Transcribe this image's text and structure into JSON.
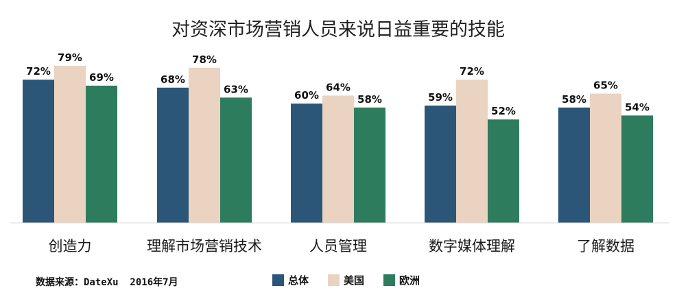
{
  "chart_data": {
    "type": "bar",
    "title": "对资深市场营销人员来说日益重要的技能",
    "categories": [
      "创造力",
      "理解市场营销技术",
      "人员管理",
      "数字媒体理解",
      "了解数据"
    ],
    "series": [
      {
        "name": "总体",
        "color": "#2b5677",
        "values": [
          72,
          68,
          60,
          59,
          58
        ],
        "labels": [
          "72%",
          "68%",
          "60%",
          "59%",
          "58%"
        ]
      },
      {
        "name": "美国",
        "color": "#ead3c1",
        "values": [
          79,
          78,
          64,
          72,
          65
        ],
        "labels": [
          "79%",
          "78%",
          "64%",
          "72%",
          "65%"
        ]
      },
      {
        "name": "欧洲",
        "color": "#2e7c5e",
        "values": [
          69,
          63,
          58,
          52,
          54
        ],
        "labels": [
          "69%",
          "63%",
          "58%",
          "52%",
          "54%"
        ]
      }
    ],
    "ylim": [
      0,
      100
    ],
    "grid": false,
    "legend_position": "bottom"
  },
  "footer": {
    "source": "数据来源：DateXu  2016年7月"
  }
}
